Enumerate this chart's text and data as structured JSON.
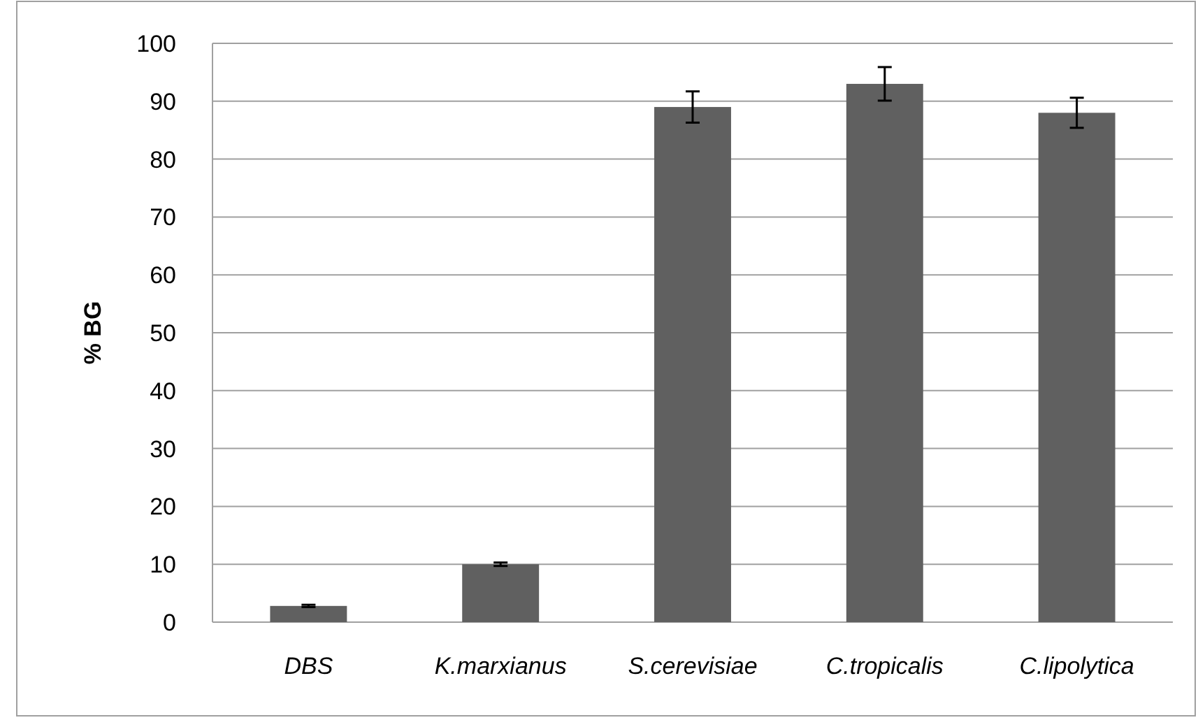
{
  "chart_data": {
    "type": "bar",
    "ylabel": "% BG",
    "categories": [
      "DBS",
      "K.marxianus",
      "S.cerevisiae",
      "C.tropicalis",
      "C.lipolytica"
    ],
    "values": [
      2.8,
      10,
      89,
      93,
      88
    ],
    "errors": [
      0.2,
      0.3,
      2.7,
      2.9,
      2.6
    ],
    "color": "#606060",
    "ylim": [
      0,
      100
    ],
    "yticks": [
      0,
      10,
      20,
      30,
      40,
      50,
      60,
      70,
      80,
      90,
      100
    ],
    "grid": "y"
  }
}
